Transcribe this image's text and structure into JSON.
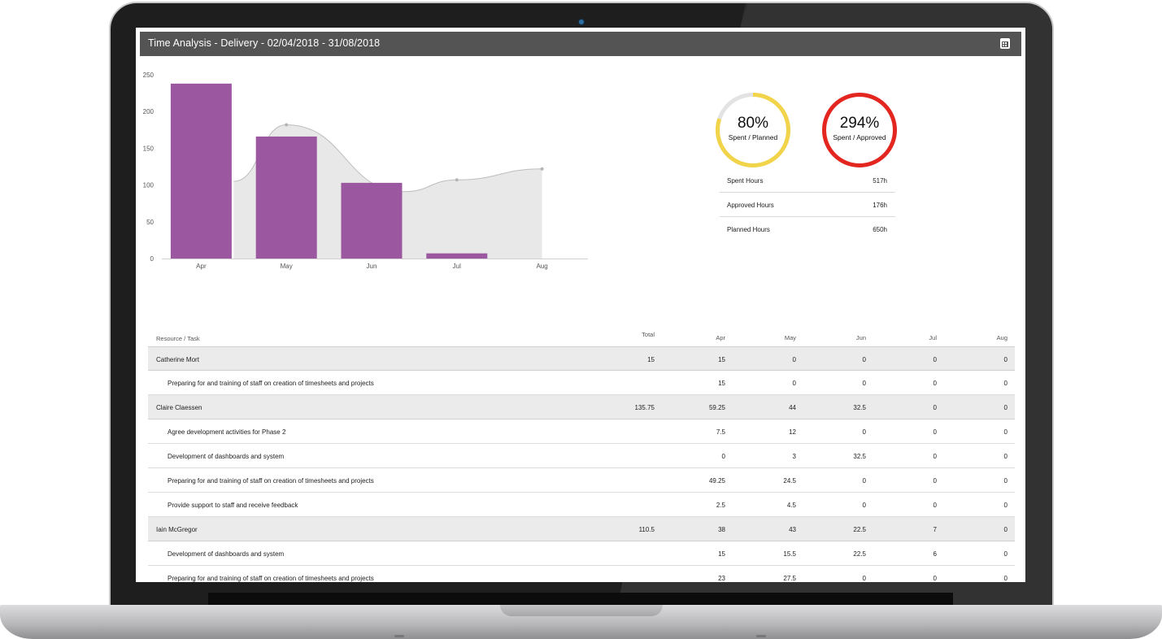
{
  "header": {
    "title": "Time Analysis - Delivery - 02/04/2018 - 31/08/2018",
    "icon": "calendar-icon"
  },
  "chart_data": {
    "type": "bar",
    "categories": [
      "Apr",
      "May",
      "Jun",
      "Jul",
      "Aug"
    ],
    "series": [
      {
        "type": "bar",
        "values": [
          238,
          166,
          103,
          7,
          0
        ],
        "color": "#9b58a0"
      },
      {
        "type": "area",
        "values": [
          null,
          182,
          null,
          107,
          122
        ],
        "color": "#e8e8e8"
      }
    ],
    "yticks": [
      0,
      50,
      100,
      150,
      200,
      250
    ],
    "ylim": [
      0,
      250
    ],
    "grid": false,
    "legend": "none"
  },
  "rings": [
    {
      "value": "80%",
      "fraction": 0.8,
      "label": "Spent / Planned",
      "color": "#f2d44a"
    },
    {
      "value": "294%",
      "fraction": 1.0,
      "label": "Spent / Approved",
      "color": "#e3261f"
    }
  ],
  "summary": [
    {
      "label": "Spent Hours",
      "value": "517h"
    },
    {
      "label": "Approved Hours",
      "value": "176h"
    },
    {
      "label": "Planned Hours",
      "value": "650h"
    }
  ],
  "table": {
    "headers": {
      "resource": "Resource / Task",
      "total": "Total",
      "apr": "Apr",
      "may": "May",
      "jun": "Jun",
      "jul": "Jul",
      "aug": "Aug"
    },
    "rows": [
      {
        "kind": "person",
        "name": "Catherine Mort",
        "total": "15",
        "apr": "15",
        "may": "0",
        "jun": "0",
        "jul": "0",
        "aug": "0"
      },
      {
        "kind": "task",
        "name": "Preparing for and training of staff on creation of timesheets and projects",
        "total": "",
        "apr": "15",
        "may": "0",
        "jun": "0",
        "jul": "0",
        "aug": "0"
      },
      {
        "kind": "person",
        "name": "Claire Claessen",
        "total": "135.75",
        "apr": "59.25",
        "may": "44",
        "jun": "32.5",
        "jul": "0",
        "aug": "0"
      },
      {
        "kind": "task",
        "name": "Agree development activities for Phase 2",
        "total": "",
        "apr": "7.5",
        "may": "12",
        "jun": "0",
        "jul": "0",
        "aug": "0"
      },
      {
        "kind": "task",
        "name": "Development of dashboards and system",
        "total": "",
        "apr": "0",
        "may": "3",
        "jun": "32.5",
        "jul": "0",
        "aug": "0"
      },
      {
        "kind": "task",
        "name": "Preparing for and training of staff on creation of timesheets and projects",
        "total": "",
        "apr": "49.25",
        "may": "24.5",
        "jun": "0",
        "jul": "0",
        "aug": "0"
      },
      {
        "kind": "task",
        "name": "Provide support to staff and receive feedback",
        "total": "",
        "apr": "2.5",
        "may": "4.5",
        "jun": "0",
        "jul": "0",
        "aug": "0"
      },
      {
        "kind": "person",
        "name": "Iain McGregor",
        "total": "110.5",
        "apr": "38",
        "may": "43",
        "jun": "22.5",
        "jul": "7",
        "aug": "0"
      },
      {
        "kind": "task",
        "name": "Development of dashboards and system",
        "total": "",
        "apr": "15",
        "may": "15.5",
        "jun": "22.5",
        "jul": "6",
        "aug": "0"
      },
      {
        "kind": "task",
        "name": "Preparing for and training of staff on creation of timesheets and projects",
        "total": "",
        "apr": "23",
        "may": "27.5",
        "jun": "0",
        "jul": "0",
        "aug": "0"
      }
    ]
  }
}
